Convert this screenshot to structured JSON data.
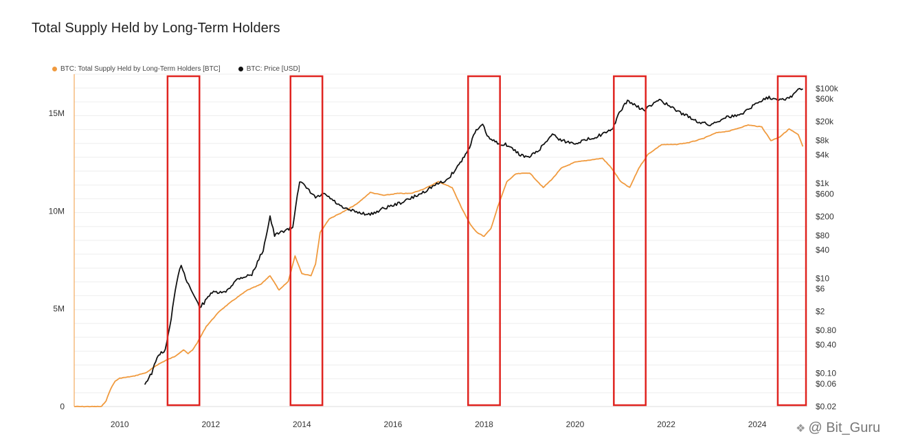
{
  "title": "Total Supply Held by Long-Term Holders",
  "legend": {
    "lth": "BTC: Total Supply Held by Long-Term Holders [BTC]",
    "price": "BTC: Price [USD]"
  },
  "watermark": "@ Bit_Guru",
  "colors": {
    "lth": "#F09A3E",
    "price": "#111111",
    "highlight": "#E0231F",
    "grid": "#EEEEEE"
  },
  "chart_data": {
    "type": "line",
    "title": "Total Supply Held by Long-Term Holders",
    "x_ticks": [
      "2010",
      "2012",
      "2014",
      "2016",
      "2018",
      "2020",
      "2022",
      "2024"
    ],
    "y_left_ticks": [
      "0",
      "5M",
      "10M",
      "15M"
    ],
    "y_left_values": [
      0,
      5000000,
      10000000,
      15000000
    ],
    "y_right_ticks": [
      "$0.02",
      "$0.06",
      "$0.10",
      "$0.40",
      "$0.80",
      "$2",
      "$6",
      "$10",
      "$40",
      "$80",
      "$200",
      "$600",
      "$1k",
      "$4k",
      "$8k",
      "$20k",
      "$60k",
      "$100k"
    ],
    "y_right_values": [
      0.02,
      0.06,
      0.1,
      0.4,
      0.8,
      2,
      6,
      10,
      40,
      80,
      200,
      600,
      1000,
      4000,
      8000,
      20000,
      60000,
      100000
    ],
    "y_right_scale": "log",
    "x_range": [
      2009.0,
      2025.1
    ],
    "y_left_range": [
      0,
      17000000
    ],
    "y_right_range": [
      0.02,
      200000
    ],
    "grid": true,
    "legend_position": "top-left",
    "highlight_windows": [
      [
        2011.05,
        2011.75
      ],
      [
        2013.75,
        2014.45
      ],
      [
        2017.65,
        2018.35
      ],
      [
        2020.85,
        2021.55
      ],
      [
        2024.45,
        2025.15
      ]
    ],
    "series": [
      {
        "name": "BTC: Total Supply Held by Long-Term Holders [BTC]",
        "axis": "left",
        "x": [
          2009.0,
          2009.6,
          2009.7,
          2009.8,
          2009.9,
          2010.0,
          2010.3,
          2010.6,
          2010.8,
          2011.0,
          2011.2,
          2011.4,
          2011.5,
          2011.6,
          2011.7,
          2011.9,
          2012.2,
          2012.5,
          2012.8,
          2013.1,
          2013.3,
          2013.5,
          2013.7,
          2013.85,
          2014.0,
          2014.2,
          2014.3,
          2014.4,
          2014.6,
          2014.9,
          2015.2,
          2015.5,
          2015.8,
          2016.1,
          2016.4,
          2016.7,
          2017.0,
          2017.3,
          2017.5,
          2017.7,
          2017.85,
          2018.0,
          2018.15,
          2018.3,
          2018.5,
          2018.7,
          2019.0,
          2019.3,
          2019.5,
          2019.7,
          2020.0,
          2020.3,
          2020.6,
          2020.8,
          2021.0,
          2021.2,
          2021.4,
          2021.6,
          2021.9,
          2022.2,
          2022.5,
          2022.8,
          2023.1,
          2023.4,
          2023.8,
          2024.1,
          2024.3,
          2024.5,
          2024.7,
          2024.9,
          2025.0
        ],
        "y": [
          0,
          0,
          300000,
          900000,
          1300000,
          1450000,
          1550000,
          1750000,
          2100000,
          2350000,
          2550000,
          2900000,
          2700000,
          2900000,
          3250000,
          4100000,
          4900000,
          5450000,
          5950000,
          6250000,
          6700000,
          5950000,
          6400000,
          7700000,
          6800000,
          6700000,
          7300000,
          8900000,
          9600000,
          9950000,
          10350000,
          10950000,
          10800000,
          10900000,
          10900000,
          11150000,
          11500000,
          11200000,
          10200000,
          9300000,
          8900000,
          8700000,
          9100000,
          10200000,
          11500000,
          11900000,
          11950000,
          11200000,
          11650000,
          12200000,
          12500000,
          12600000,
          12700000,
          12200000,
          11500000,
          11200000,
          12200000,
          12900000,
          13400000,
          13400000,
          13500000,
          13700000,
          14000000,
          14100000,
          14400000,
          14300000,
          13600000,
          13800000,
          14200000,
          13900000,
          13300000
        ]
      },
      {
        "name": "BTC: Price [USD]",
        "axis": "right",
        "x": [
          2010.55,
          2010.7,
          2010.85,
          2011.0,
          2011.1,
          2011.25,
          2011.35,
          2011.45,
          2011.6,
          2011.75,
          2011.85,
          2012.0,
          2012.3,
          2012.6,
          2012.9,
          2013.15,
          2013.3,
          2013.4,
          2013.6,
          2013.8,
          2013.9,
          2013.95,
          2014.1,
          2014.3,
          2014.5,
          2014.9,
          2015.2,
          2015.5,
          2015.8,
          2016.2,
          2016.6,
          2016.9,
          2017.2,
          2017.45,
          2017.65,
          2017.8,
          2017.97,
          2018.1,
          2018.3,
          2018.5,
          2018.8,
          2018.97,
          2019.2,
          2019.5,
          2019.7,
          2019.97,
          2020.2,
          2020.5,
          2020.8,
          2020.97,
          2021.15,
          2021.3,
          2021.5,
          2021.7,
          2021.85,
          2022.1,
          2022.4,
          2022.7,
          2022.97,
          2023.3,
          2023.6,
          2023.9,
          2024.2,
          2024.5,
          2024.7,
          2024.9,
          2025.0
        ],
        "y": [
          0.06,
          0.1,
          0.25,
          0.3,
          1,
          8,
          20,
          10,
          5,
          2.5,
          3,
          5,
          5,
          10,
          12,
          40,
          200,
          80,
          100,
          120,
          600,
          1100,
          800,
          500,
          600,
          300,
          250,
          220,
          300,
          400,
          600,
          900,
          1200,
          2500,
          5000,
          12000,
          17000,
          9000,
          7000,
          6500,
          4000,
          3500,
          5000,
          11000,
          8000,
          7000,
          8000,
          10000,
          13000,
          30000,
          56000,
          45000,
          35000,
          45000,
          60000,
          40000,
          28000,
          20000,
          17000,
          25000,
          27000,
          43000,
          65000,
          60000,
          62000,
          95000,
          98000
        ]
      }
    ]
  }
}
